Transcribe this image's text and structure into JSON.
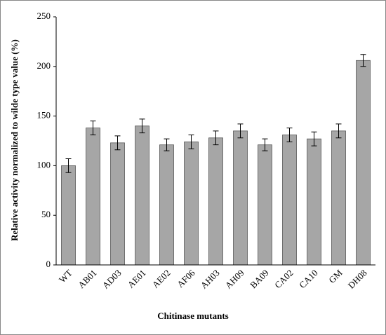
{
  "chart_data": {
    "type": "bar",
    "x_label": "Chitinase mutants",
    "y_label": "Relative activity normalized to  wilde type value  (%)",
    "categories": [
      "WT",
      "AB01",
      "AD03",
      "AE01",
      "AE02",
      "AF06",
      "AH03",
      "AH09",
      "BA09",
      "CA02",
      "CA10",
      "GM",
      "DH08"
    ],
    "values": [
      100,
      138,
      123,
      140,
      121,
      124,
      128,
      135,
      121,
      131,
      127,
      135,
      206
    ],
    "errors": [
      7,
      7,
      7,
      7,
      6,
      7,
      7,
      7,
      6,
      7,
      7,
      7,
      6
    ],
    "color": "#a6a6a6",
    "ylim": [
      0,
      250
    ],
    "yticks": [
      0,
      50,
      100,
      150,
      200,
      250
    ]
  }
}
